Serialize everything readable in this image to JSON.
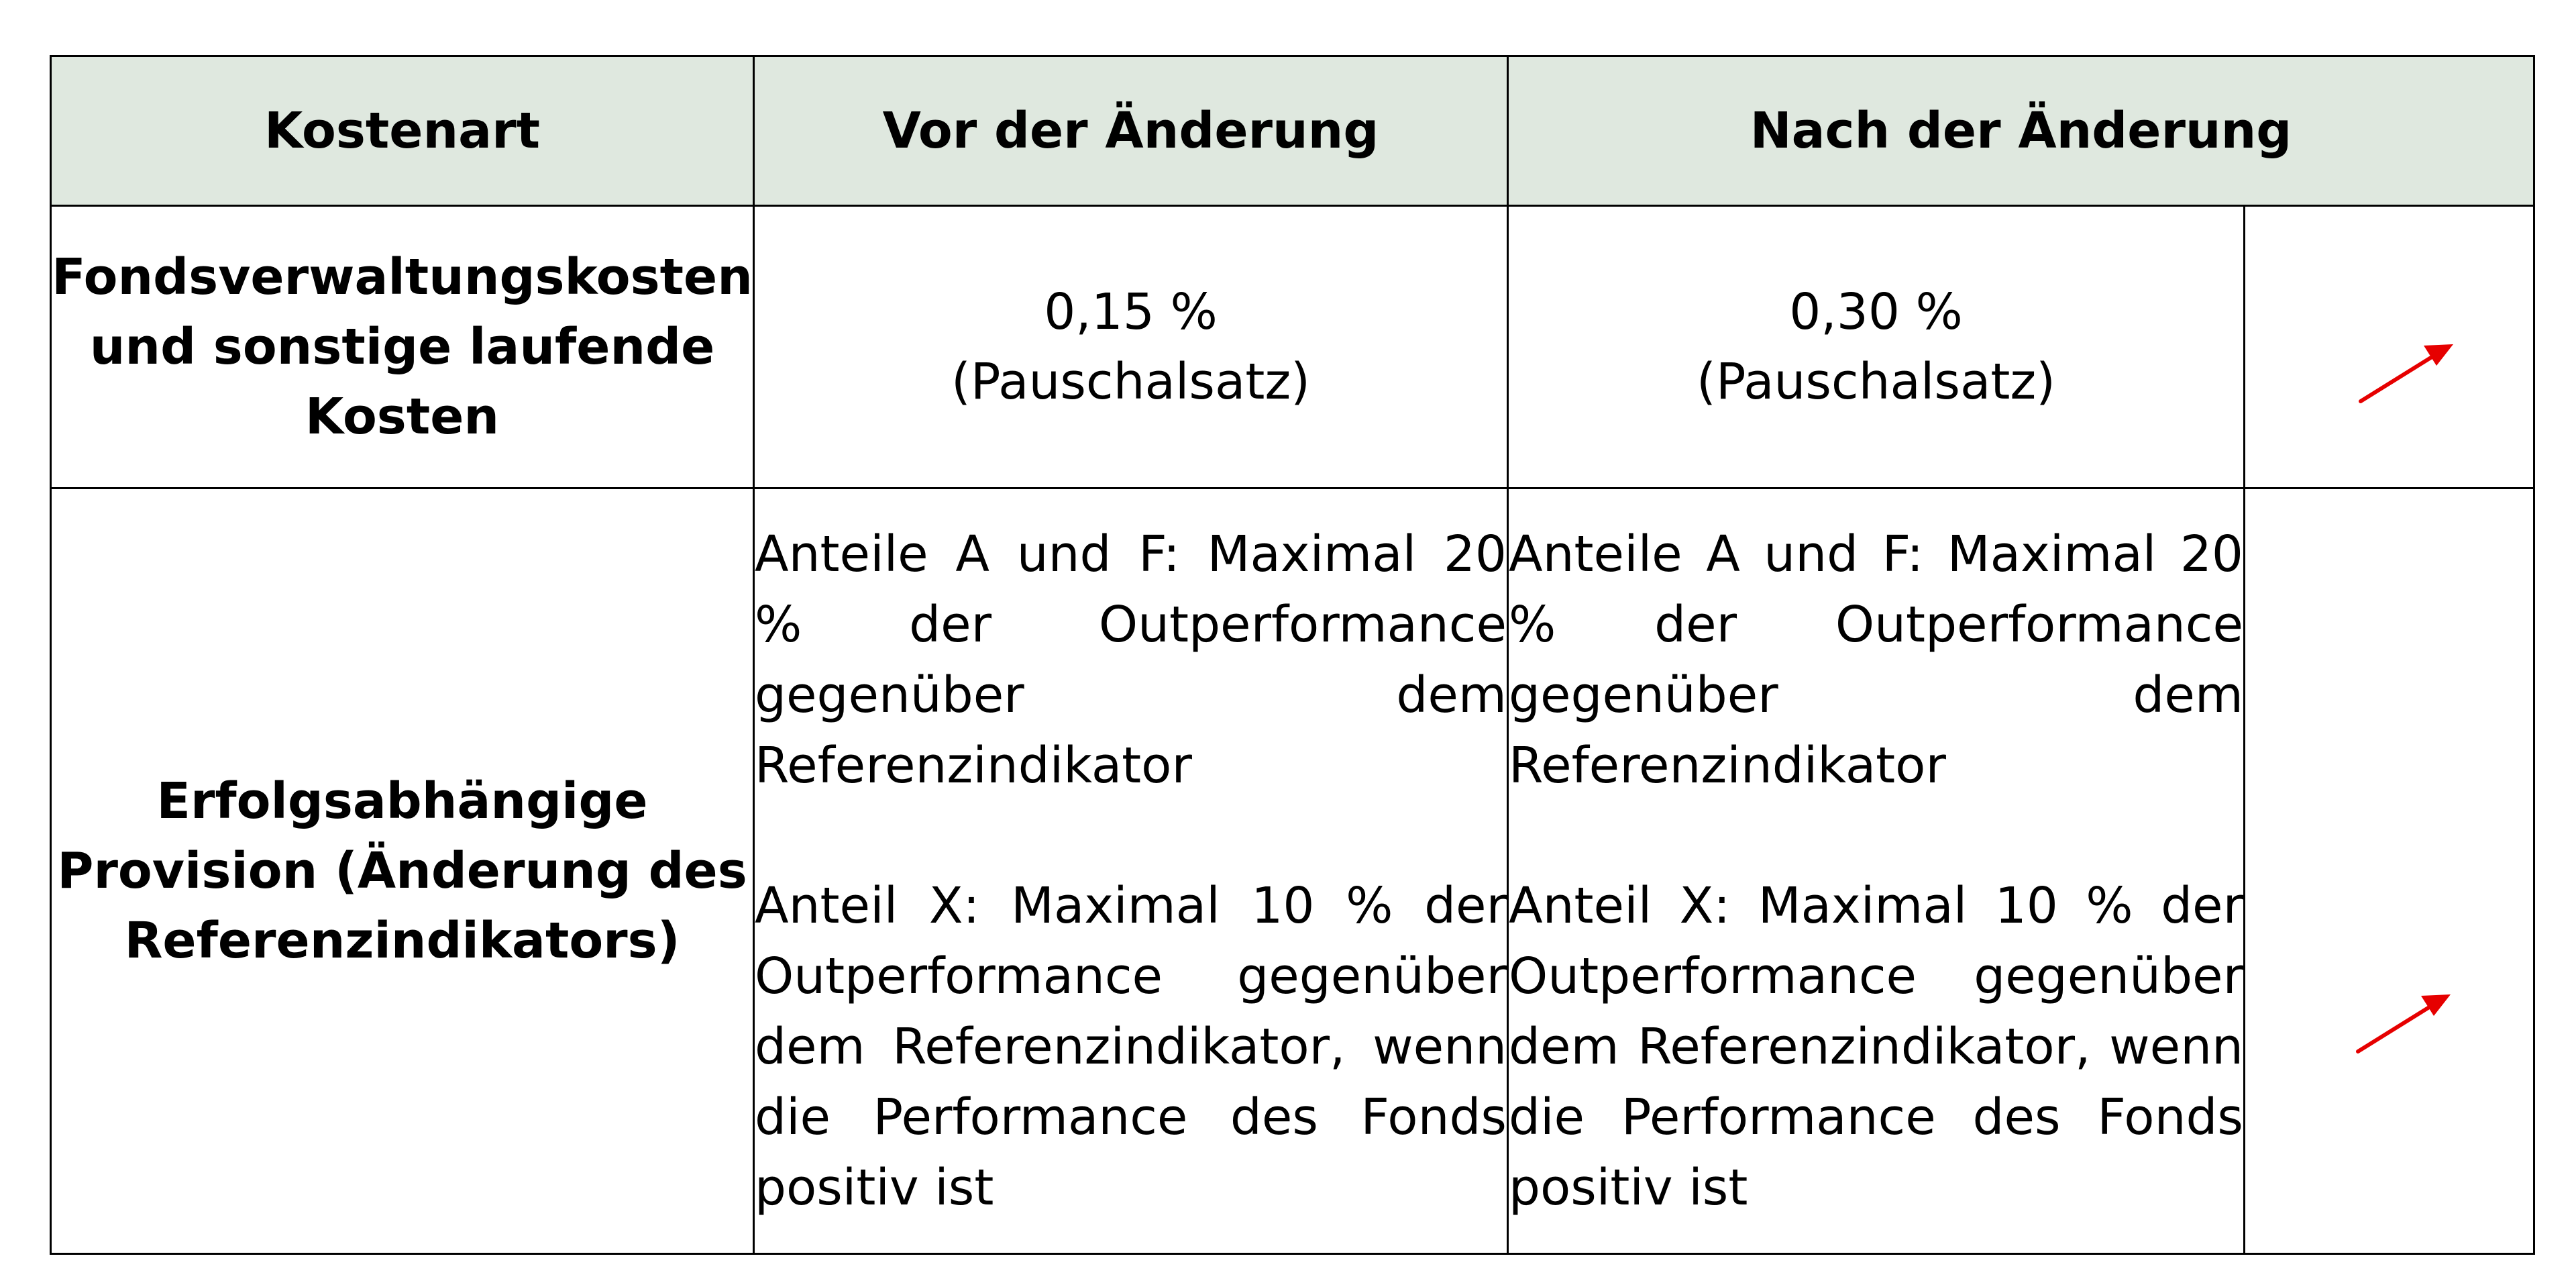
{
  "table": {
    "headers": {
      "cost_type": "Kostenart",
      "before": "Vor der Änderung",
      "after": "Nach der Änderung"
    },
    "rows": [
      {
        "label_lines": [
          "Fondsverwaltungskosten",
          "und sonstige laufende",
          "Kosten"
        ],
        "before_lines": [
          "0,15 %",
          "(Pauschalsatz)"
        ],
        "after_lines": [
          "0,30 %",
          "(Pauschalsatz)"
        ],
        "change_icon": "arrow-up-right-icon",
        "change_color": "#e60000"
      },
      {
        "label_lines": [
          "Erfolgsabhängige",
          "Provision (Änderung des",
          "Referenzindikators)"
        ],
        "before_paragraphs": [
          "Anteile A und F: Maximal 20 % der Outperformance gegenüber dem Referenzindikator",
          "Anteil X: Maximal 10 % der Outperformance gegenüber dem Referenzindikator, wenn die Performance des Fonds positiv ist"
        ],
        "after_paragraphs": [
          "Anteile A und F: Maximal 20 % der Outperformance gegenüber dem Referenzindikator",
          "Anteil X: Maximal 10 % der Outperformance gegenüber dem Referenzindikator, wenn die Performance des Fonds positiv ist"
        ],
        "change_icon": "arrow-up-right-icon",
        "change_color": "#e60000"
      }
    ],
    "header_background": "#dfe8df"
  }
}
